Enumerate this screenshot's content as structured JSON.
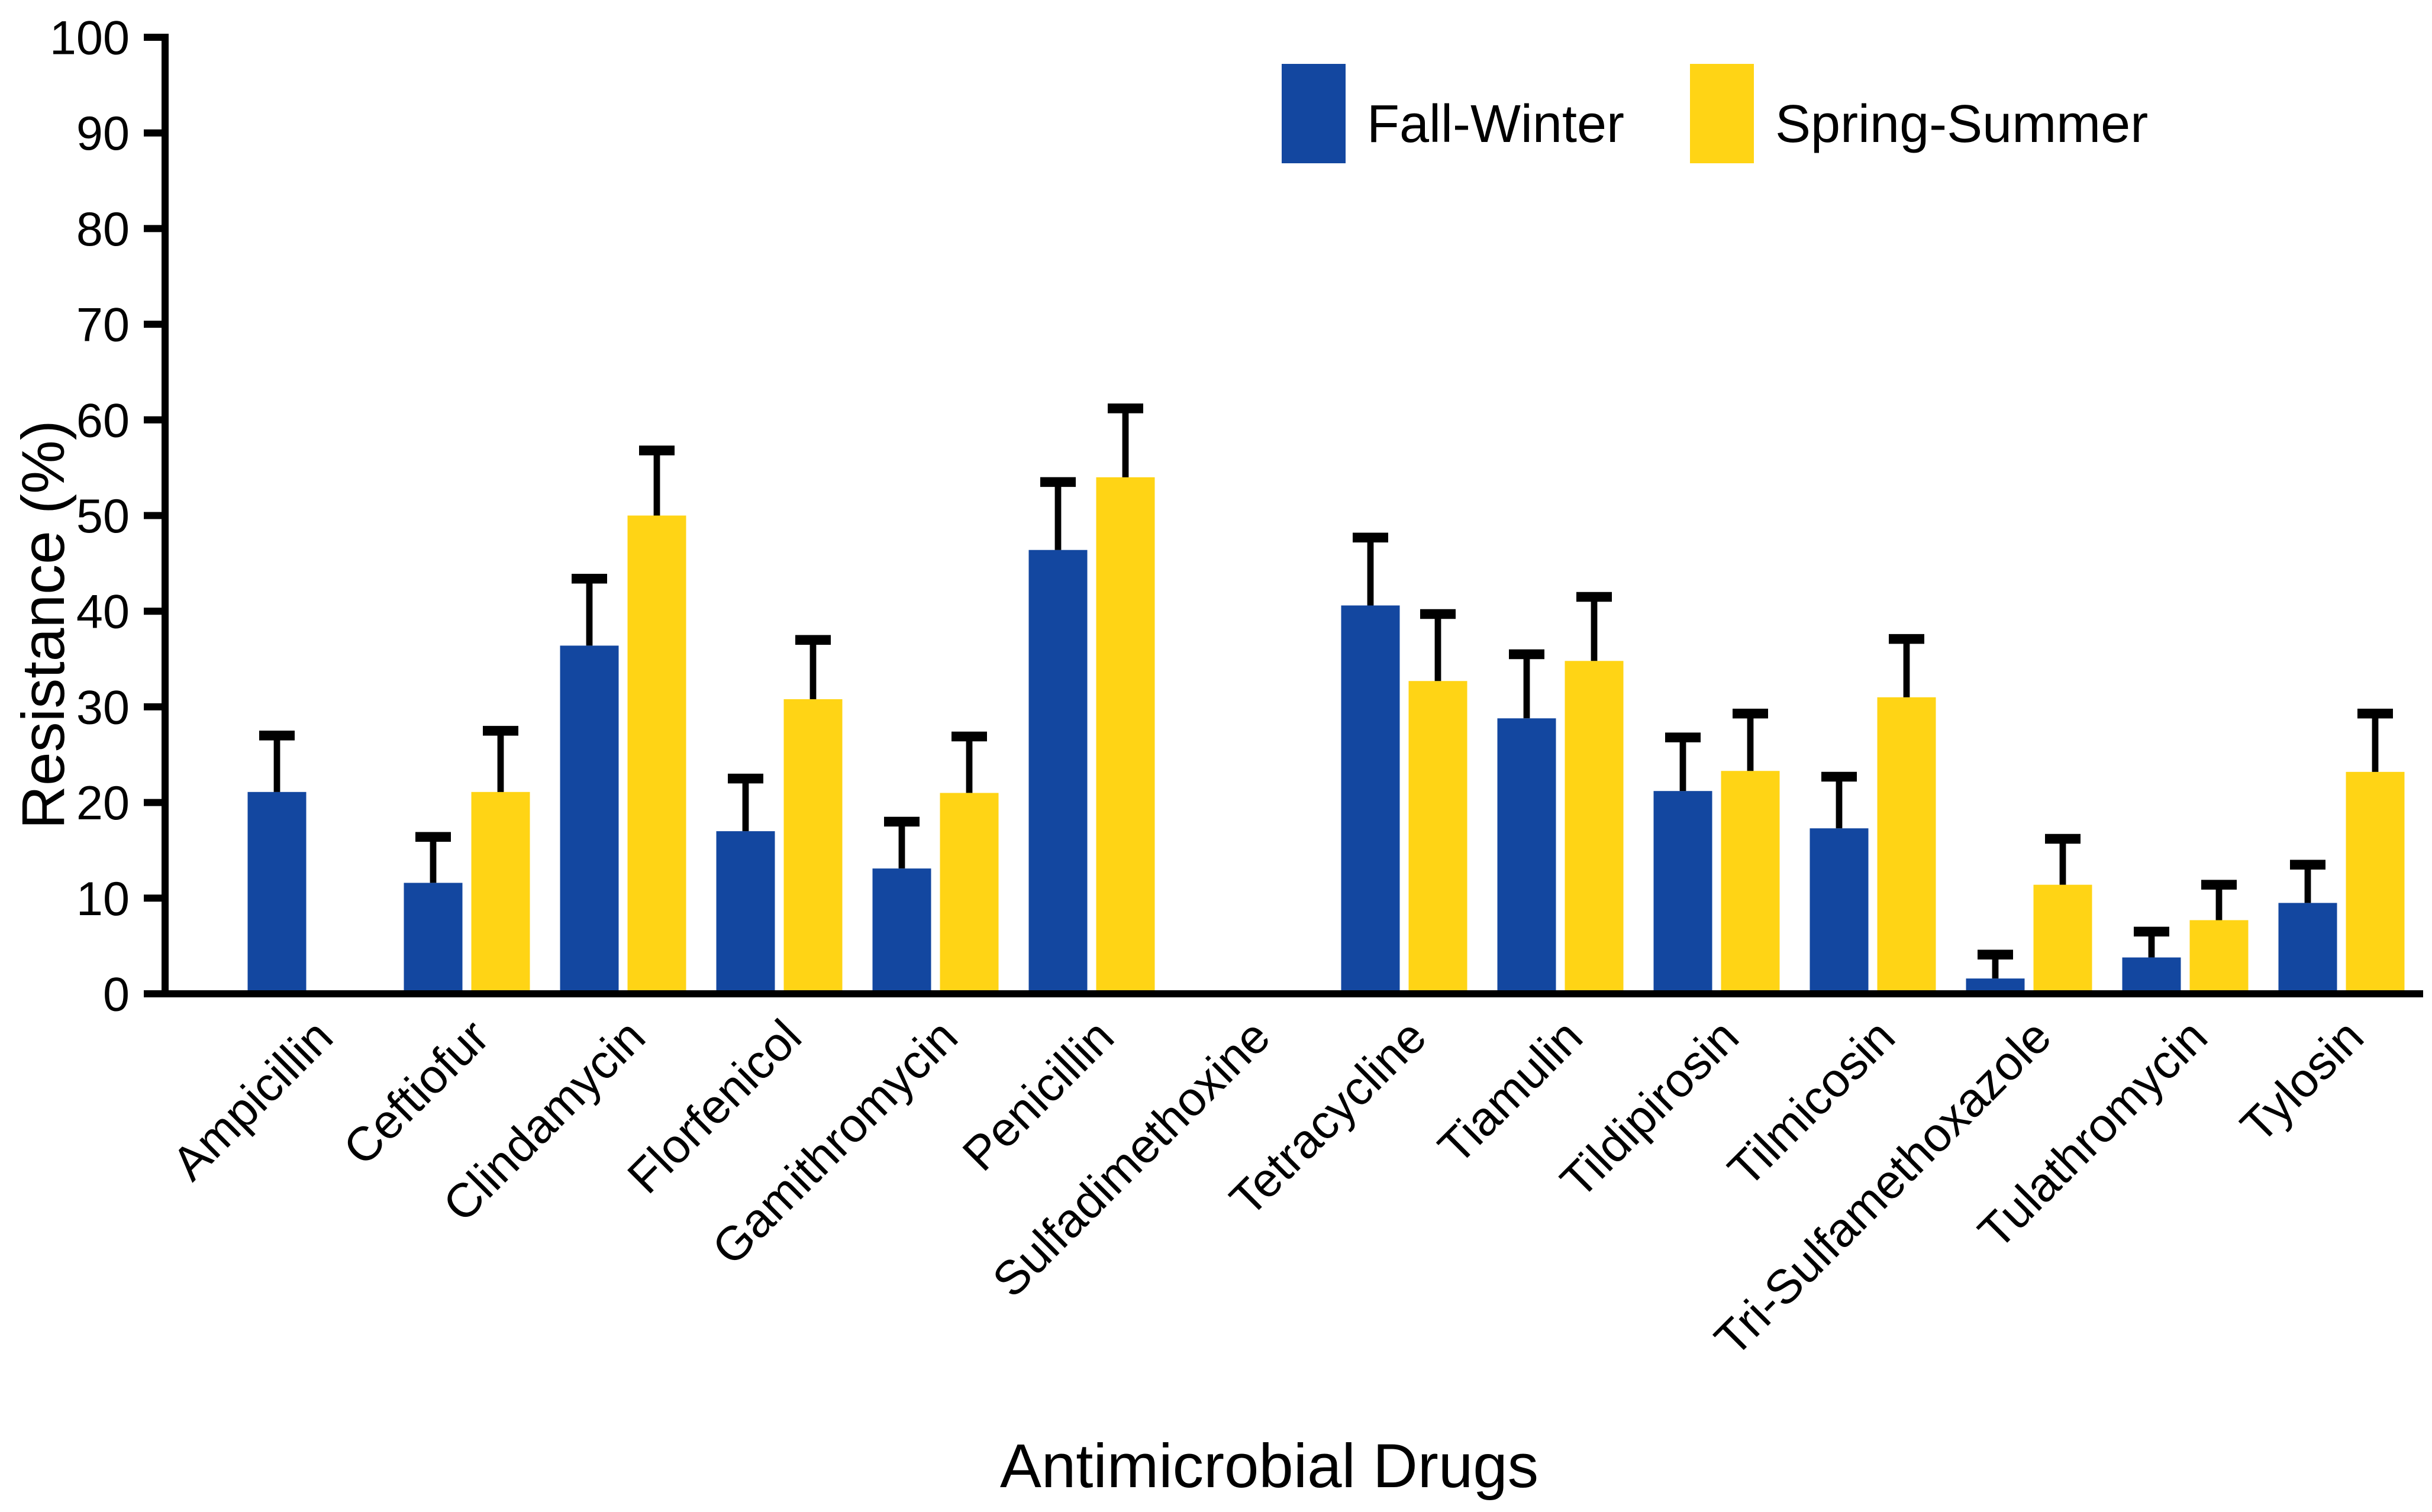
{
  "chart_data": {
    "type": "bar",
    "title": "",
    "xlabel": "Antimicrobial Drugs",
    "ylabel": "Resistance (%)",
    "ylim": [
      0,
      100
    ],
    "yticks": [
      0,
      10,
      20,
      30,
      40,
      50,
      60,
      70,
      80,
      90,
      100
    ],
    "grid": false,
    "legend_position": "top-center",
    "error_bars": "upper",
    "categories": [
      "Ampicillin",
      "Ceftiofur",
      "Clindamycin",
      "Florfenicol",
      "Gamithromycin",
      "Penicillin",
      "Sulfadimethoxine",
      "Tetracycline",
      "Tiamulin",
      "Tildipirosin",
      "Tilmicosin",
      "Tri-Sulfamethoxazole",
      "Tulathromycin",
      "Tylosin"
    ],
    "series": [
      {
        "name": "Fall-Winter",
        "color": "#1347A0",
        "values": [
          21.1,
          11.6,
          36.4,
          17.0,
          13.1,
          46.4,
          0,
          40.6,
          28.8,
          21.2,
          17.3,
          1.6,
          3.8,
          9.5
        ],
        "errors": [
          5.9,
          4.8,
          7.0,
          5.5,
          4.9,
          7.1,
          0,
          7.1,
          6.7,
          5.6,
          5.4,
          2.5,
          2.7,
          4.0
        ]
      },
      {
        "name": "Spring-Summer",
        "color": "#FFD415",
        "values": [
          0,
          21.1,
          50.0,
          30.8,
          21.0,
          54.0,
          0,
          32.7,
          34.8,
          23.3,
          31.0,
          11.4,
          7.7,
          23.2
        ],
        "errors": [
          0,
          6.4,
          6.8,
          6.2,
          5.9,
          7.2,
          0,
          7.0,
          6.7,
          6.0,
          6.1,
          4.8,
          3.7,
          6.1
        ]
      }
    ],
    "axis_color": "#000000",
    "error_bar_color": "#000000"
  }
}
